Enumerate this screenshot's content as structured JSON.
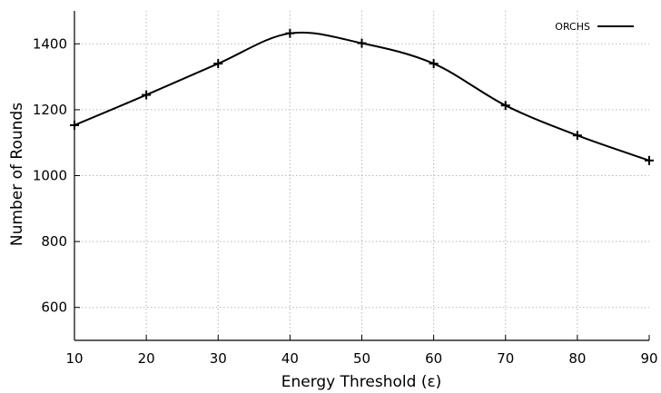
{
  "chart_data": {
    "type": "line",
    "title": "",
    "xlabel": "Energy Threshold (ε)",
    "ylabel": "Number of Rounds",
    "xlim": [
      10,
      90
    ],
    "ylim": [
      500,
      1500
    ],
    "x_ticks": [
      10,
      20,
      30,
      40,
      50,
      60,
      70,
      80,
      90
    ],
    "y_ticks": [
      600,
      800,
      1000,
      1200,
      1400
    ],
    "grid": true,
    "legend_position": "top-right",
    "series": [
      {
        "name": "ORCHS",
        "color": "#000000",
        "marker": "plus",
        "x": [
          10,
          20,
          30,
          40,
          50,
          60,
          70,
          80,
          90
        ],
        "y": [
          1153,
          1245,
          1340,
          1432,
          1402,
          1340,
          1213,
          1122,
          1046
        ]
      }
    ]
  }
}
